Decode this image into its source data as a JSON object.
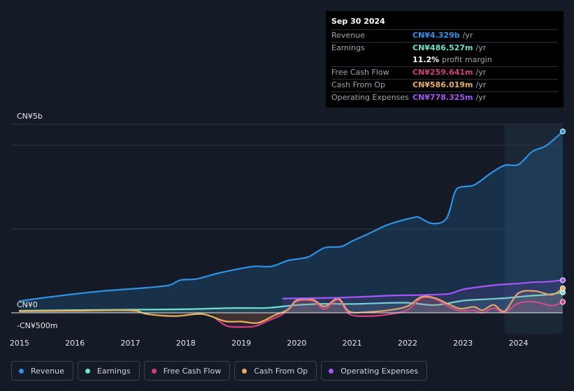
{
  "chart_data": {
    "type": "line",
    "title": "",
    "y_top_label": "CN¥5b",
    "y_zero_label": "CN¥0",
    "y_bottom_label": "-CN¥500m",
    "ylim": [
      -500,
      4500
    ],
    "xlim": [
      2014.85,
      2024.8
    ],
    "x_ticks": [
      "2015",
      "2016",
      "2017",
      "2018",
      "2019",
      "2020",
      "2021",
      "2022",
      "2023",
      "2024"
    ],
    "highlight_start": 2023.75,
    "series": [
      {
        "name": "Revenue",
        "color": "#2e93e6",
        "fill": true,
        "x": [
          2015.0,
          2015.5,
          2016.0,
          2016.5,
          2016.9,
          2017.3,
          2017.7,
          2017.9,
          2018.2,
          2018.6,
          2019.0,
          2019.25,
          2019.55,
          2019.85,
          2020.2,
          2020.5,
          2020.8,
          2021.0,
          2021.3,
          2021.6,
          2021.85,
          2022.1,
          2022.2,
          2022.45,
          2022.7,
          2022.85,
          2022.95,
          2023.2,
          2023.5,
          2023.75,
          2024.0,
          2024.25,
          2024.5,
          2024.8
        ],
        "values": [
          280,
          370,
          450,
          520,
          560,
          600,
          660,
          780,
          810,
          950,
          1060,
          1110,
          1110,
          1250,
          1330,
          1550,
          1580,
          1710,
          1890,
          2080,
          2190,
          2270,
          2280,
          2130,
          2250,
          2870,
          3000,
          3050,
          3330,
          3520,
          3540,
          3850,
          3990,
          4329
        ]
      },
      {
        "name": "Earnings",
        "color": "#6fe0cc",
        "fill": false,
        "x": [
          2015.0,
          2016.0,
          2017.0,
          2018.0,
          2018.7,
          2019.0,
          2019.5,
          2020.0,
          2020.5,
          2021.0,
          2021.5,
          2022.0,
          2022.5,
          2023.0,
          2023.5,
          2023.75,
          2024.0,
          2024.25,
          2024.5,
          2024.8
        ],
        "values": [
          50,
          65,
          75,
          85,
          110,
          115,
          120,
          185,
          215,
          210,
          230,
          240,
          185,
          290,
          330,
          350,
          380,
          410,
          430,
          486
        ]
      },
      {
        "name": "Free Cash Flow",
        "color": "#d13f7e",
        "fill": false,
        "x": [
          2018.55,
          2018.75,
          2019.0,
          2019.25,
          2019.5,
          2019.75,
          2020.0,
          2020.3,
          2020.5,
          2020.75,
          2020.95,
          2021.3,
          2021.7,
          2022.0,
          2022.25,
          2022.5,
          2022.75,
          2022.95,
          2023.2,
          2023.35,
          2023.55,
          2023.75,
          2024.0,
          2024.3,
          2024.6,
          2024.8
        ],
        "values": [
          -150,
          -320,
          -340,
          -320,
          -180,
          -30,
          270,
          280,
          90,
          310,
          -30,
          -80,
          -30,
          70,
          350,
          330,
          140,
          50,
          60,
          0,
          110,
          10,
          230,
          260,
          170,
          260
        ]
      },
      {
        "name": "Cash From Op",
        "color": "#e8b15c",
        "fill": false,
        "x": [
          2015.0,
          2016.0,
          2017.0,
          2017.3,
          2017.8,
          2018.3,
          2018.7,
          2019.0,
          2019.3,
          2019.6,
          2019.85,
          2020.0,
          2020.3,
          2020.5,
          2020.75,
          2020.95,
          2021.3,
          2021.7,
          2022.0,
          2022.25,
          2022.5,
          2022.75,
          2022.95,
          2023.2,
          2023.35,
          2023.55,
          2023.75,
          2024.0,
          2024.3,
          2024.6,
          2024.8
        ],
        "values": [
          40,
          50,
          60,
          -30,
          -80,
          -30,
          -200,
          -210,
          -240,
          -60,
          80,
          300,
          310,
          150,
          340,
          30,
          20,
          70,
          160,
          380,
          350,
          200,
          100,
          140,
          60,
          190,
          40,
          470,
          520,
          430,
          586
        ]
      },
      {
        "name": "Operating Expenses",
        "color": "#a855f7",
        "fill": false,
        "x": [
          2019.75,
          2020.25,
          2020.75,
          2021.25,
          2021.75,
          2022.25,
          2022.75,
          2023.0,
          2023.5,
          2023.75,
          2024.0,
          2024.25,
          2024.5,
          2024.8
        ],
        "values": [
          340,
          350,
          360,
          385,
          415,
          425,
          455,
          560,
          650,
          680,
          700,
          730,
          740,
          778
        ]
      }
    ]
  },
  "tooltip": {
    "date": "Sep 30 2024",
    "rows": [
      {
        "label": "Revenue",
        "value": "CN¥4.329b",
        "unit": "/yr",
        "color": "#2e93e6"
      },
      {
        "label": "Earnings",
        "value": "CN¥486.527m",
        "unit": "/yr",
        "color": "#6fe0cc"
      },
      {
        "label": "",
        "value": "11.2%",
        "unit": "profit margin",
        "color": "#ffffff"
      },
      {
        "label": "Free Cash Flow",
        "value": "CN¥259.641m",
        "unit": "/yr",
        "color": "#d13f7e"
      },
      {
        "label": "Cash From Op",
        "value": "CN¥586.019m",
        "unit": "/yr",
        "color": "#e8b15c"
      },
      {
        "label": "Operating Expenses",
        "value": "CN¥778.325m",
        "unit": "/yr",
        "color": "#a855f7"
      }
    ]
  },
  "legend": [
    {
      "label": "Revenue",
      "color": "#2e93e6"
    },
    {
      "label": "Earnings",
      "color": "#6fe0cc"
    },
    {
      "label": "Free Cash Flow",
      "color": "#d13f7e"
    },
    {
      "label": "Cash From Op",
      "color": "#e8b15c"
    },
    {
      "label": "Operating Expenses",
      "color": "#a855f7"
    }
  ]
}
